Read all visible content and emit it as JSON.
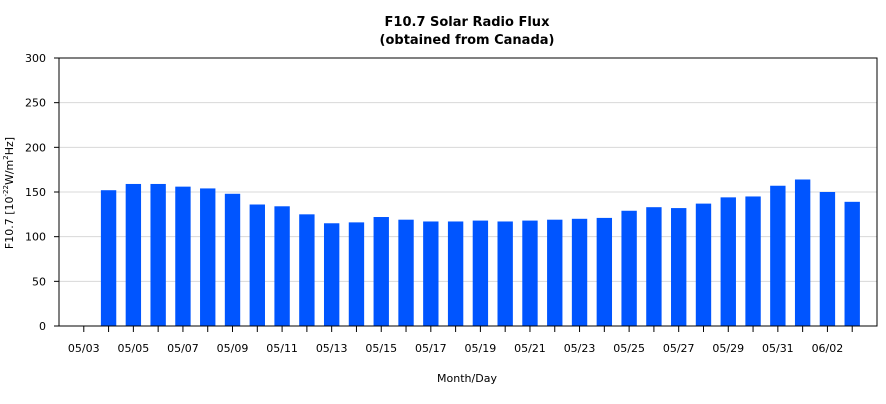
{
  "chart_data": {
    "type": "bar",
    "title": "F10.7 Solar Radio Flux",
    "subtitle": "(obtained from Canada)",
    "xlabel": "Month/Day",
    "ylabel_main": "F10.7 [10",
    "ylabel_exp1": "-22",
    "ylabel_mid": "W/m",
    "ylabel_exp2": "2",
    "ylabel_end": "Hz]",
    "ylim": [
      0,
      300
    ],
    "yticks": [
      0,
      50,
      100,
      150,
      200,
      250,
      300
    ],
    "grid": true,
    "bar_color": "#0055ff",
    "x_tick_labels": [
      "05/03",
      "05/05",
      "05/07",
      "05/09",
      "05/11",
      "05/13",
      "05/15",
      "05/17",
      "05/19",
      "05/21",
      "05/23",
      "05/25",
      "05/27",
      "05/29",
      "05/31",
      "06/02"
    ],
    "categories": [
      "05/03",
      "05/04",
      "05/05",
      "05/06",
      "05/07",
      "05/08",
      "05/09",
      "05/10",
      "05/11",
      "05/12",
      "05/13",
      "05/14",
      "05/15",
      "05/16",
      "05/17",
      "05/18",
      "05/19",
      "05/20",
      "05/21",
      "05/22",
      "05/23",
      "05/24",
      "05/25",
      "05/26",
      "05/27",
      "05/28",
      "05/29",
      "05/30",
      "05/31",
      "06/01",
      "06/02",
      "06/03"
    ],
    "values": [
      null,
      152,
      159,
      159,
      156,
      154,
      148,
      136,
      134,
      125,
      115,
      116,
      122,
      119,
      117,
      117,
      118,
      117,
      118,
      119,
      120,
      121,
      129,
      133,
      132,
      137,
      144,
      145,
      157,
      164,
      150,
      139
    ]
  }
}
